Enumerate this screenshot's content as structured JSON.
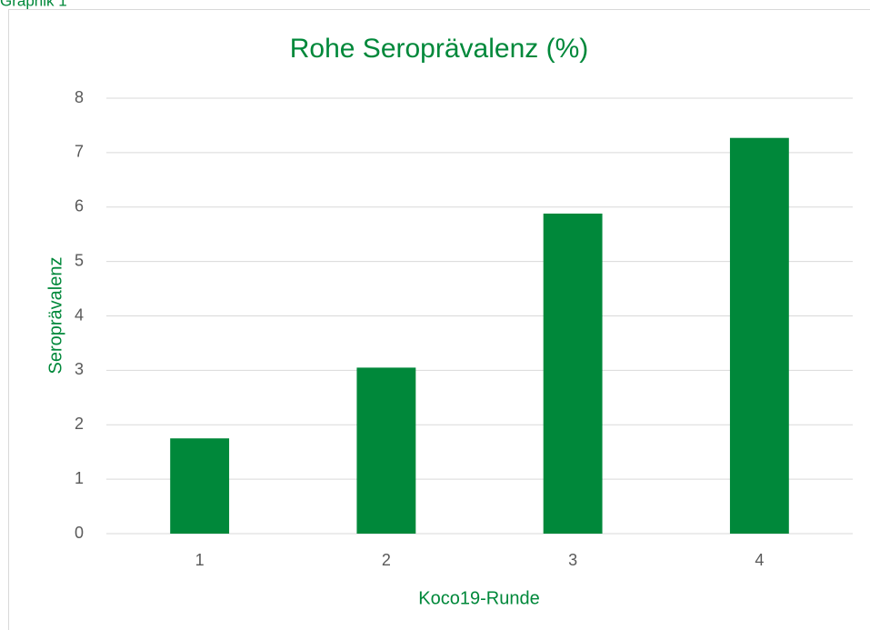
{
  "caption": "Graphik 1",
  "chart_data": {
    "type": "bar",
    "title": "Rohe Seroprävalenz (%)",
    "x_label": "Koco19-Runde",
    "y_label": "Seroprävalenz",
    "categories": [
      "1",
      "2",
      "3",
      "4"
    ],
    "values": [
      1.75,
      3.05,
      5.88,
      7.27
    ],
    "color": "#00883a",
    "ylim": [
      0,
      8
    ],
    "yticks": [
      0,
      1,
      2,
      3,
      4,
      5,
      6,
      7,
      8
    ],
    "grid": true
  }
}
